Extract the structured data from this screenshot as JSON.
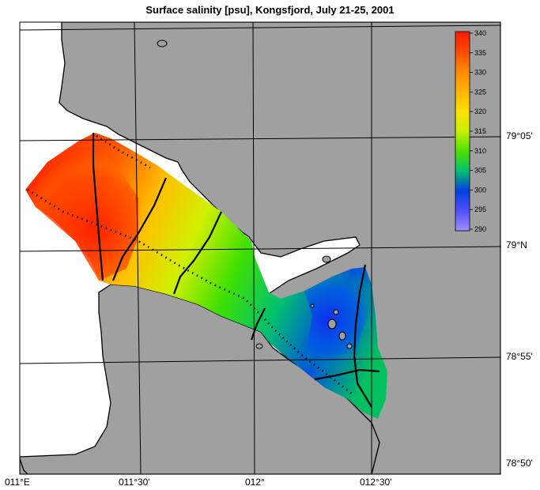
{
  "map": {
    "title": "Surface salinity [psu], Kongsfjord, July 21-25, 2001",
    "latitude_labels": [
      "79°05'",
      "79°N",
      "78°55'",
      "78°50'"
    ],
    "longitude_labels": [
      "011°E",
      "011°30'",
      "012°",
      "012°30'"
    ]
  },
  "colorbar": {
    "ticks": [
      "340",
      "335",
      "330",
      "325",
      "320",
      "315",
      "310",
      "305",
      "300",
      "295",
      "290"
    ],
    "colors": [
      "#ff1a00",
      "#ff4a00",
      "#ff8a00",
      "#ffb400",
      "#ffe000",
      "#c8f000",
      "#50e000",
      "#00c070",
      "#0040e0",
      "#5050ff",
      "#a090ff"
    ]
  },
  "colors": {
    "land": "#a0a0a0",
    "coast": "#000000",
    "grid": "#000000",
    "water": "#ffffff"
  }
}
